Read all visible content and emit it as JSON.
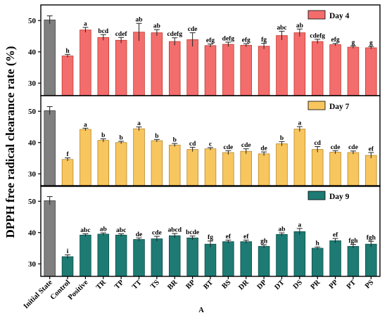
{
  "chart_data": {
    "type": "bar",
    "ylabel": "DPPH free radical clearance rate (%)",
    "footer": "A",
    "categories": [
      "Initial State",
      "Control",
      "Positive",
      "TR",
      "TP",
      "TT",
      "TS",
      "BR",
      "BP",
      "BT",
      "BS",
      "DR",
      "DP",
      "DT",
      "DS",
      "PR",
      "PP",
      "PT",
      "PS"
    ],
    "ylim": [
      26,
      55
    ],
    "yticks": [
      30,
      40,
      50
    ],
    "colors": {
      "initial": "#7f7f7f"
    },
    "panels": [
      {
        "legend": "Day 4",
        "color": "#f46d6d",
        "values": [
          50.2,
          38.7,
          47.0,
          44.6,
          43.7,
          46.3,
          46.1,
          43.3,
          43.9,
          42.0,
          42.4,
          42.1,
          41.8,
          45.2,
          46.1,
          43.3,
          42.3,
          41.5,
          41.3
        ],
        "errors": [
          1.3,
          0.5,
          0.8,
          0.9,
          0.9,
          2.8,
          1.0,
          1.2,
          2.2,
          0.5,
          0.7,
          0.5,
          0.9,
          1.4,
          1.2,
          0.7,
          0.4,
          0.4,
          0.4
        ],
        "labels": [
          "",
          "h",
          "a",
          "bcd",
          "cdef",
          "ab",
          "ab",
          "cdefg",
          "cde",
          "efg",
          "defg",
          "efg",
          "fg",
          "abc",
          "ab",
          "cdefg",
          "efg",
          "g",
          "g"
        ]
      },
      {
        "legend": "Day 7",
        "color": "#f7c65e",
        "values": [
          50.2,
          34.6,
          44.2,
          40.7,
          40.0,
          44.4,
          40.6,
          39.2,
          37.8,
          38.0,
          36.8,
          37.2,
          36.4,
          39.6,
          44.3,
          37.8,
          36.9,
          36.8,
          35.9
        ],
        "errors": [
          1.3,
          0.5,
          0.4,
          0.5,
          0.4,
          0.6,
          0.4,
          0.5,
          0.7,
          0.4,
          0.6,
          0.8,
          0.6,
          0.7,
          0.8,
          0.9,
          0.5,
          0.5,
          0.9
        ],
        "labels": [
          "",
          "f",
          "a",
          "b",
          "b",
          "a",
          "b",
          "b",
          "cd",
          "c",
          "cde",
          "cde",
          "de",
          "b",
          "a",
          "cd",
          "cde",
          "cde",
          "ef"
        ]
      },
      {
        "legend": "Day 9",
        "color": "#1d7b74",
        "values": [
          50.2,
          32.3,
          39.2,
          39.5,
          39.2,
          37.8,
          38.0,
          39.0,
          38.3,
          36.3,
          37.1,
          37.1,
          35.6,
          39.4,
          40.3,
          35.0,
          37.4,
          35.6,
          36.3
        ],
        "errors": [
          1.3,
          0.6,
          0.4,
          0.4,
          0.4,
          0.5,
          0.8,
          0.7,
          0.6,
          1.0,
          0.5,
          0.5,
          0.5,
          0.5,
          1.0,
          0.4,
          0.7,
          0.6,
          0.9
        ],
        "labels": [
          "",
          "i",
          "abc",
          "ab",
          "abc",
          "de",
          "cde",
          "abcd",
          "bcde",
          "fg",
          "ef",
          "ef",
          "gh",
          "ab",
          "a",
          "h",
          "ef",
          "fgh",
          "fgh"
        ]
      }
    ]
  }
}
